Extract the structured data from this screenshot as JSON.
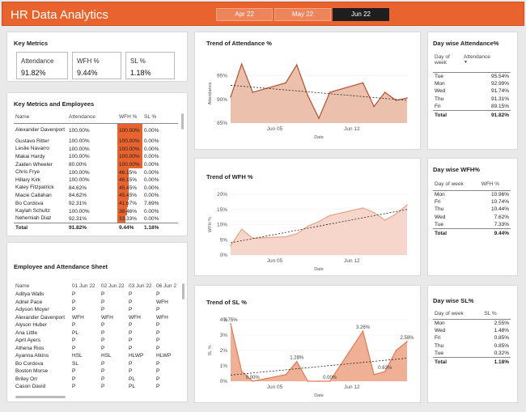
{
  "app_title": "HR Data Analytics",
  "tabs": [
    "Apr 22",
    "May 22",
    "Jun 22"
  ],
  "active_tab": "Jun 22",
  "key_metrics": {
    "title": "Key Metrics",
    "items": [
      {
        "label": "Attendance",
        "value": "91.82%"
      },
      {
        "label": "WFH %",
        "value": "9.44%"
      },
      {
        "label": "SL %",
        "value": "1.18%"
      }
    ]
  },
  "employees_table": {
    "title": "Key Metrics and Employees",
    "headers": [
      "Name",
      "Attendance",
      "WFH %",
      "SL %"
    ],
    "rows": [
      {
        "name": "Alexander Davenport",
        "att": "100.00%",
        "wfh": "100.00%",
        "wfh_frac": 1.0,
        "sl": "0.00%"
      },
      {
        "name": "Gustavo Ritter",
        "att": "100.00%",
        "wfh": "100.00%",
        "wfh_frac": 1.0,
        "sl": "0.00%"
      },
      {
        "name": "Leslie Navarro",
        "att": "100.00%",
        "wfh": "100.00%",
        "wfh_frac": 1.0,
        "sl": "0.00%"
      },
      {
        "name": "Makai Hardy",
        "att": "100.00%",
        "wfh": "100.00%",
        "wfh_frac": 1.0,
        "sl": "0.00%"
      },
      {
        "name": "Zaiden Wheeler",
        "att": "80.00%",
        "wfh": "100.00%",
        "wfh_frac": 1.0,
        "sl": "0.00%"
      },
      {
        "name": "Chris Frye",
        "att": "100.00%",
        "wfh": "46.15%",
        "wfh_frac": 0.4615,
        "sl": "0.00%"
      },
      {
        "name": "Hillary Kirk",
        "att": "100.00%",
        "wfh": "46.15%",
        "wfh_frac": 0.4615,
        "sl": "0.00%"
      },
      {
        "name": "Kaley Fitzpatrick",
        "att": "84.62%",
        "wfh": "45.45%",
        "wfh_frac": 0.4545,
        "sl": "0.00%"
      },
      {
        "name": "Macie Callahan",
        "att": "84.62%",
        "wfh": "45.45%",
        "wfh_frac": 0.4545,
        "sl": "0.00%"
      },
      {
        "name": "Bo Cordova",
        "att": "92.31%",
        "wfh": "41.67%",
        "wfh_frac": 0.4167,
        "sl": "7.69%"
      },
      {
        "name": "Kaylah Schultz",
        "att": "100.00%",
        "wfh": "38.46%",
        "wfh_frac": 0.3846,
        "sl": "0.00%"
      },
      {
        "name": "Nehemiah Diaz",
        "att": "92.31%",
        "wfh": "33.33%",
        "wfh_frac": 0.3333,
        "sl": "0.00%"
      }
    ],
    "total": {
      "name": "Total",
      "att": "91.82%",
      "wfh": "9.44%",
      "sl": "1.18%"
    }
  },
  "sheet": {
    "title": "Employee and Attendance Sheet",
    "headers": [
      "Name",
      "01 Jun 22",
      "02 Jun 22",
      "03 Jun 22",
      "06 Jun 2"
    ],
    "rows": [
      [
        "Aditya Walls",
        "P",
        "P",
        "P",
        "P"
      ],
      [
        "Adriel Pace",
        "P",
        "P",
        "P",
        "WFH"
      ],
      [
        "Adyson Moyer",
        "P",
        "P",
        "P",
        "P"
      ],
      [
        "Alexander Davenport",
        "WFH",
        "WFH",
        "WFH",
        "WFH"
      ],
      [
        "Alyson Huber",
        "P",
        "P",
        "P",
        "P"
      ],
      [
        "Ana Little",
        "PL",
        "P",
        "P",
        "P"
      ],
      [
        "April Ayers",
        "P",
        "P",
        "P",
        "P"
      ],
      [
        "Athena Rios",
        "P",
        "P",
        "P",
        "P"
      ],
      [
        "Ayanna Atkins",
        "HSL",
        "HSL",
        "HLWP",
        "HLWP"
      ],
      [
        "Bo Cordova",
        "SL",
        "P",
        "P",
        "P"
      ],
      [
        "Boston Morse",
        "P",
        "P",
        "P",
        "P"
      ],
      [
        "Briley Orr",
        "P",
        "P",
        "PL",
        "P"
      ],
      [
        "Cason David",
        "P",
        "P",
        "PL",
        "P"
      ]
    ]
  },
  "attendance_day": {
    "title": "Day wise Attendance%",
    "headers": [
      "Day of week",
      "Attendance"
    ],
    "rows": [
      [
        "Tue",
        "95.54%"
      ],
      [
        "Mon",
        "92.99%"
      ],
      [
        "Wed",
        "91.74%"
      ],
      [
        "Thu",
        "91.31%"
      ],
      [
        "Fri",
        "89.15%"
      ]
    ],
    "total": [
      "Total",
      "91.82%"
    ]
  },
  "wfh_day": {
    "title": "Day wise WFH%",
    "headers": [
      "Day of week",
      "WFH %"
    ],
    "rows": [
      [
        "Mon",
        "10.96%"
      ],
      [
        "Fri",
        "10.74%"
      ],
      [
        "Thu",
        "10.44%"
      ],
      [
        "Wed",
        "7.62%"
      ],
      [
        "Tue",
        "7.33%"
      ]
    ],
    "total": [
      "Total",
      "9.44%"
    ]
  },
  "sl_day": {
    "title": "Day wise SL%",
    "headers": [
      "Day of week",
      "SL %"
    ],
    "rows": [
      [
        "Mon",
        "2.55%"
      ],
      [
        "Wed",
        "1.48%"
      ],
      [
        "Fri",
        "0.85%"
      ],
      [
        "Thu",
        "0.85%"
      ],
      [
        "Tue",
        "0.32%"
      ]
    ],
    "total": [
      "Total",
      "1.18%"
    ]
  },
  "chart_data": [
    {
      "type": "area",
      "title": "Trend of Attendance %",
      "xlabel": "Date",
      "ylabel": "Attendance",
      "xticks": [
        {
          "day": 5,
          "label": "Jun 05"
        },
        {
          "day": 12,
          "label": "Jun 12"
        }
      ],
      "yticks": [
        {
          "v": 85,
          "label": "85%"
        },
        {
          "v": 90,
          "label": "90%"
        },
        {
          "v": 95,
          "label": "95%"
        }
      ],
      "ylim": [
        85,
        97.5
      ],
      "x": [
        1,
        2,
        3,
        6,
        7,
        8,
        9,
        10,
        13,
        14,
        15,
        16,
        17
      ],
      "values": [
        90.5,
        97.5,
        91.5,
        93.5,
        97.3,
        90.8,
        86.0,
        91.5,
        93.5,
        88.5,
        91.5,
        89.8,
        90.3
      ],
      "trend": [
        93.0,
        89.8
      ],
      "color": "#b5502c",
      "fill": "#e9b9a4",
      "data_labels": []
    },
    {
      "type": "area",
      "title": "Trend of WFH %",
      "xlabel": "Date",
      "ylabel": "WFH %",
      "xticks": [
        {
          "day": 5,
          "label": "Jun 05"
        },
        {
          "day": 12,
          "label": "Jun 12"
        }
      ],
      "yticks": [
        {
          "v": 0,
          "label": "0%"
        },
        {
          "v": 5,
          "label": "5%"
        },
        {
          "v": 10,
          "label": "10%"
        },
        {
          "v": 15,
          "label": "15%"
        },
        {
          "v": 20,
          "label": "20%"
        }
      ],
      "ylim": [
        0,
        20
      ],
      "x": [
        1,
        2,
        3,
        6,
        7,
        8,
        9,
        10,
        13,
        14,
        15,
        16,
        17
      ],
      "values": [
        3.0,
        8.5,
        5.5,
        6.0,
        7.0,
        9.5,
        11.0,
        13.0,
        15.5,
        14.0,
        11.5,
        13.5,
        16.5
      ],
      "trend": [
        4.0,
        15.0
      ],
      "color": "#e8a58c",
      "fill": "#f5d2c4",
      "data_labels": []
    },
    {
      "type": "area",
      "title": "Trend of SL %",
      "xlabel": "Date",
      "ylabel": "SL %",
      "xticks": [
        {
          "day": 5,
          "label": "Jun 05"
        },
        {
          "day": 12,
          "label": "Jun 12"
        }
      ],
      "yticks": [
        {
          "v": 0,
          "label": "0%"
        },
        {
          "v": 1,
          "label": "1%"
        },
        {
          "v": 2,
          "label": "2%"
        },
        {
          "v": 3,
          "label": "3%"
        },
        {
          "v": 4,
          "label": "4%"
        }
      ],
      "ylim": [
        0,
        4
      ],
      "x": [
        1,
        2,
        3,
        6,
        7,
        8,
        9,
        10,
        13,
        14,
        15,
        16,
        17
      ],
      "values": [
        3.75,
        0.64,
        0.0,
        0.43,
        1.28,
        0.0,
        0.0,
        0.0,
        3.26,
        0.43,
        0.63,
        2.0,
        2.58
      ],
      "trend": [
        0.4,
        1.5
      ],
      "color": "#e07a53",
      "fill": "#eda78a",
      "data_labels": [
        {
          "i": 0,
          "label": "3.75%"
        },
        {
          "i": 2,
          "label": "0.00%"
        },
        {
          "i": 4,
          "label": "1.28%"
        },
        {
          "i": 7,
          "label": "0.00%"
        },
        {
          "i": 8,
          "label": "3.26%"
        },
        {
          "i": 10,
          "label": "0.63%"
        },
        {
          "i": 12,
          "label": "2.58%"
        }
      ]
    }
  ]
}
